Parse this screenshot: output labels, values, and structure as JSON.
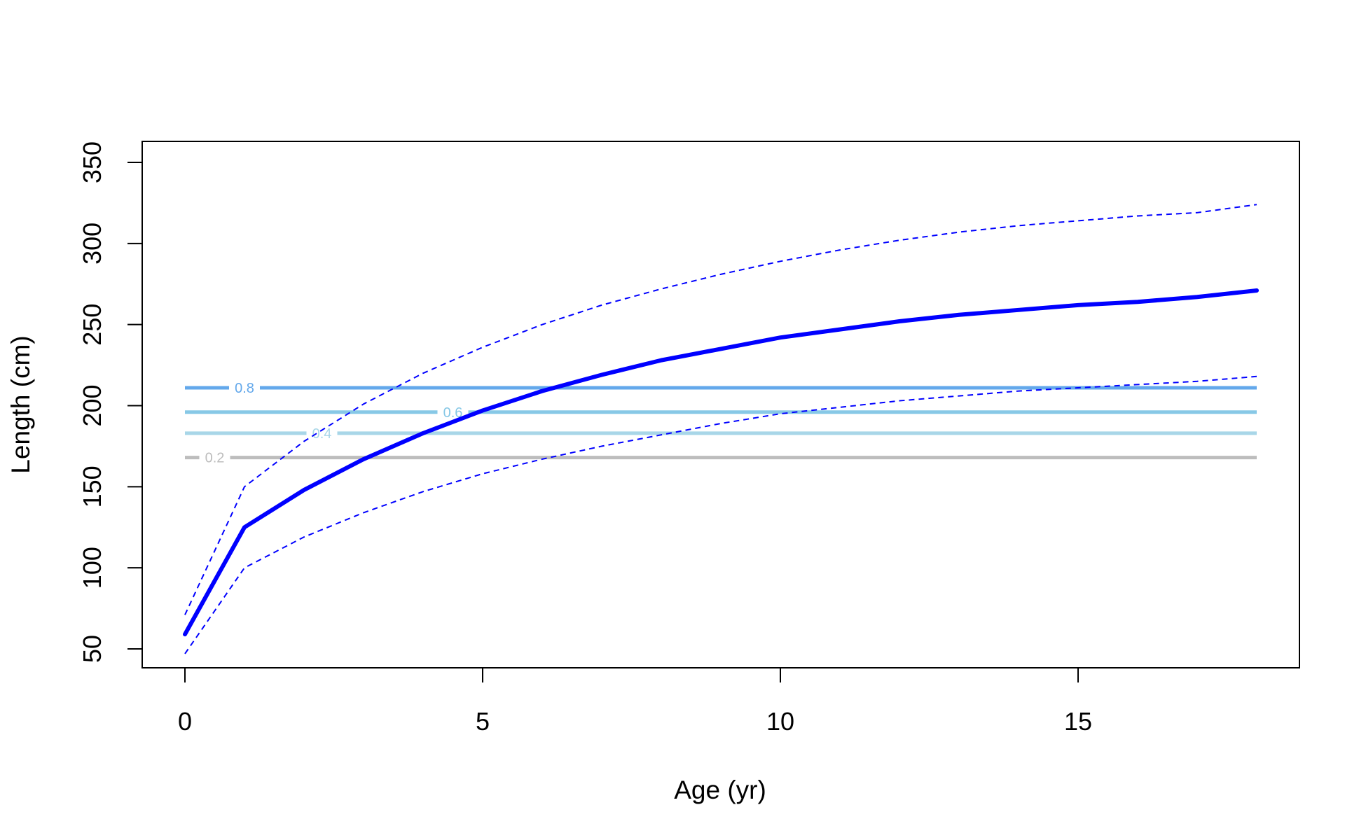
{
  "chart_data": {
    "type": "line",
    "title": "",
    "xlabel": "Age (yr)",
    "ylabel": "Length (cm)",
    "xlim": [
      0,
      18
    ],
    "ylim": [
      50,
      350
    ],
    "x_ticks": [
      0,
      5,
      10,
      15
    ],
    "y_ticks": [
      50,
      100,
      150,
      200,
      250,
      300,
      350
    ],
    "grid": false,
    "legend": "none",
    "x": [
      0,
      1,
      2,
      3,
      4,
      5,
      6,
      7,
      8,
      9,
      10,
      11,
      12,
      13,
      14,
      15,
      16,
      17,
      18
    ],
    "series": [
      {
        "role": "mean",
        "color": "#0000ff",
        "style": "solid-thick",
        "values": [
          59,
          125,
          148,
          167,
          183,
          197,
          209,
          219,
          228,
          235,
          242,
          247,
          252,
          256,
          259,
          262,
          264,
          267,
          271
        ]
      },
      {
        "role": "upper",
        "color": "#0000ff",
        "style": "dashed",
        "values": [
          71,
          150,
          178,
          201,
          220,
          236,
          250,
          262,
          272,
          281,
          289,
          296,
          302,
          307,
          311,
          314,
          317,
          319,
          324
        ]
      },
      {
        "role": "lower",
        "color": "#0000ff",
        "style": "dashed",
        "values": [
          47,
          100,
          119,
          134,
          147,
          158,
          167,
          175,
          182,
          189,
          195,
          199,
          203,
          206,
          209,
          211,
          213,
          215,
          218
        ]
      }
    ],
    "maturity_lines": [
      {
        "label": "0.8",
        "y": 211,
        "color": "#63a8eb",
        "label_x": 1.0
      },
      {
        "label": "0.6",
        "y": 196,
        "color": "#87c8e6",
        "label_x": 4.5
      },
      {
        "label": "0.4",
        "y": 183,
        "color": "#a8d6e8",
        "label_x": 2.3
      },
      {
        "label": "0.2",
        "y": 168,
        "color": "#bdbdbd",
        "label_x": 0.5
      }
    ]
  }
}
